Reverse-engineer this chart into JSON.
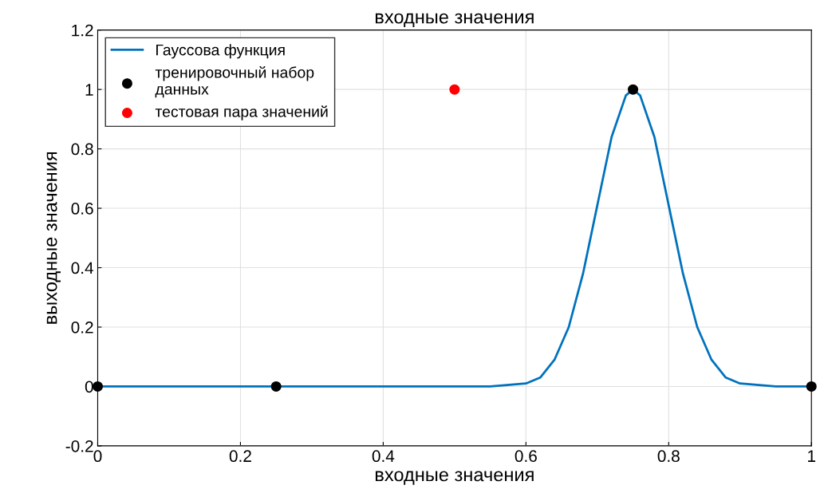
{
  "chart_data": {
    "type": "line",
    "title": "входные значения",
    "xlabel": "входные значения",
    "ylabel": "выходные значения",
    "xlim": [
      0,
      1
    ],
    "xticks": [
      0,
      0.2,
      0.4,
      0.6,
      0.8,
      1
    ],
    "ylim": [
      -0.2,
      1.2
    ],
    "yticks": [
      -0.2,
      0,
      0.2,
      0.4,
      0.6,
      0.8,
      1,
      1.2
    ],
    "grid": true,
    "legend": "top left",
    "series": [
      {
        "name": "Гауссова функция",
        "color": "#0072bd",
        "marker": "none",
        "x": [
          0,
          0.5,
          0.55,
          0.6,
          0.62,
          0.64,
          0.66,
          0.68,
          0.7,
          0.72,
          0.74,
          0.75,
          0.76,
          0.78,
          0.8,
          0.82,
          0.84,
          0.86,
          0.88,
          0.9,
          0.95,
          1.0
        ],
        "values": [
          0,
          0,
          0,
          0.01,
          0.03,
          0.09,
          0.2,
          0.38,
          0.61,
          0.84,
          0.98,
          1,
          0.98,
          0.84,
          0.61,
          0.38,
          0.2,
          0.09,
          0.03,
          0.01,
          0,
          0
        ]
      },
      {
        "name": "тренировочный набор\nданных",
        "type": "scatter",
        "color": "#000000",
        "marker": "circle",
        "x": [
          0,
          0.25,
          0.75,
          1
        ],
        "values": [
          0,
          0,
          1,
          0
        ]
      },
      {
        "name": "тестовая пара значений",
        "type": "scatter",
        "color": "#ff0000",
        "marker": "circle",
        "x": [
          0.5
        ],
        "values": [
          1
        ]
      }
    ]
  }
}
